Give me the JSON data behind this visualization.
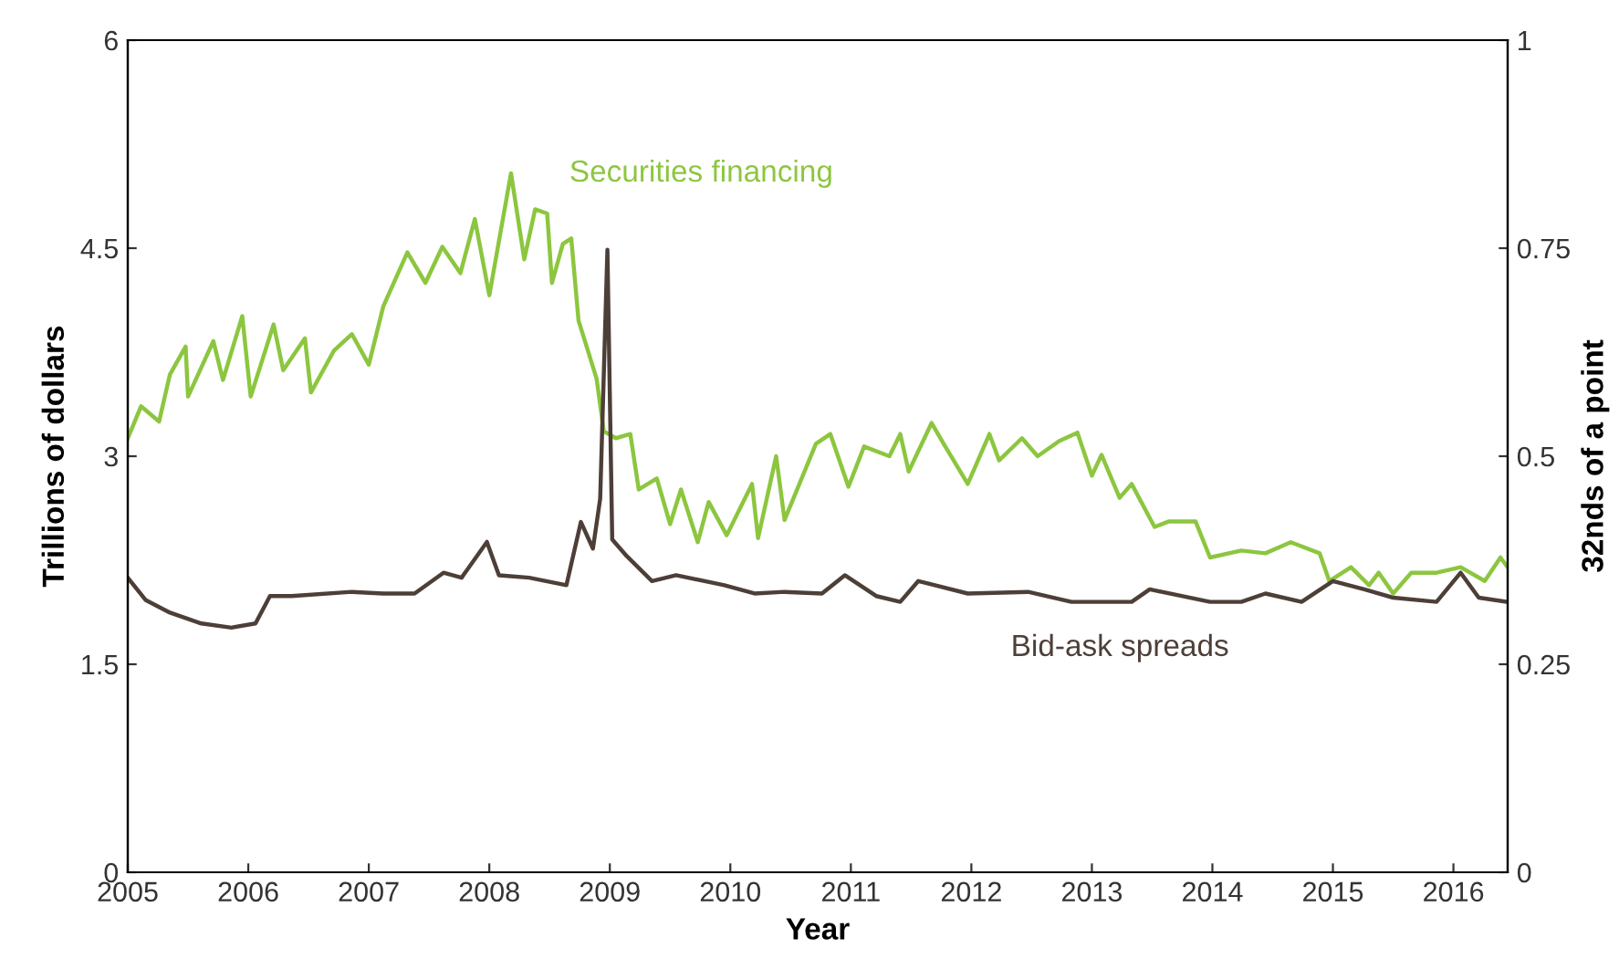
{
  "chart_data": {
    "type": "line",
    "xlabel": "Year",
    "ylabel": "Trillions of dollars",
    "y2label": "32nds of a point",
    "xlim": [
      2005,
      2016.45
    ],
    "xticks": [
      2005,
      2006,
      2007,
      2008,
      2009,
      2010,
      2011,
      2012,
      2013,
      2014,
      2015,
      2016
    ],
    "ylim": [
      0,
      6
    ],
    "yticks": [
      0,
      1.5,
      3,
      4.5,
      6
    ],
    "y2lim": [
      0,
      1
    ],
    "y2ticks": [
      0,
      0.25,
      0.5,
      0.75,
      1
    ],
    "grid": false,
    "legend": false,
    "series": [
      {
        "name": "Securities financing",
        "color": "#8cc63f",
        "x": [
          2005.0,
          2005.11,
          2005.26,
          2005.35,
          2005.48,
          2005.5,
          2005.71,
          2005.79,
          2005.95,
          2006.02,
          2006.21,
          2006.29,
          2006.47,
          2006.52,
          2006.71,
          2006.86,
          2007.0,
          2007.12,
          2007.32,
          2007.47,
          2007.61,
          2007.76,
          2007.88,
          2008.0,
          2008.18,
          2008.29,
          2008.38,
          2008.48,
          2008.52,
          2008.61,
          2008.68,
          2008.74,
          2008.89,
          2008.95,
          2009.05,
          2009.17,
          2009.24,
          2009.39,
          2009.5,
          2009.59,
          2009.73,
          2009.82,
          2009.97,
          2010.18,
          2010.23,
          2010.38,
          2010.45,
          2010.71,
          2010.83,
          2010.98,
          2011.11,
          2011.32,
          2011.41,
          2011.48,
          2011.67,
          2011.77,
          2011.97,
          2012.15,
          2012.23,
          2012.42,
          2012.55,
          2012.73,
          2012.88,
          2013.0,
          2013.08,
          2013.23,
          2013.33,
          2013.52,
          2013.64,
          2013.86,
          2013.98,
          2014.24,
          2014.44,
          2014.65,
          2014.89,
          2014.97,
          2015.15,
          2015.3,
          2015.38,
          2015.5,
          2015.65,
          2015.86,
          2016.06,
          2016.26,
          2016.39,
          2016.45
        ],
        "values": [
          3.13,
          3.36,
          3.25,
          3.59,
          3.79,
          3.43,
          3.83,
          3.55,
          4.01,
          3.43,
          3.95,
          3.62,
          3.85,
          3.46,
          3.76,
          3.88,
          3.66,
          4.08,
          4.47,
          4.25,
          4.51,
          4.32,
          4.71,
          4.16,
          5.04,
          4.42,
          4.78,
          4.75,
          4.25,
          4.53,
          4.57,
          3.98,
          3.56,
          3.18,
          3.13,
          3.16,
          2.76,
          2.84,
          2.51,
          2.76,
          2.38,
          2.67,
          2.43,
          2.8,
          2.41,
          3.0,
          2.54,
          3.09,
          3.16,
          2.78,
          3.07,
          3.0,
          3.16,
          2.89,
          3.24,
          3.09,
          2.8,
          3.16,
          2.97,
          3.13,
          3.0,
          3.11,
          3.17,
          2.86,
          3.01,
          2.7,
          2.8,
          2.49,
          2.53,
          2.53,
          2.27,
          2.32,
          2.3,
          2.38,
          2.3,
          2.1,
          2.2,
          2.07,
          2.16,
          2.01,
          2.16,
          2.16,
          2.2,
          2.1,
          2.27,
          2.2
        ]
      },
      {
        "name": "Bid-ask spreads",
        "color": "#4d3f38",
        "axis": "y2",
        "x": [
          2005.0,
          2005.15,
          2005.35,
          2005.61,
          2005.86,
          2006.06,
          2006.18,
          2006.36,
          2006.86,
          2007.12,
          2007.38,
          2007.62,
          2007.77,
          2007.98,
          2008.08,
          2008.33,
          2008.64,
          2008.76,
          2008.86,
          2008.92,
          2008.98,
          2009.02,
          2009.14,
          2009.35,
          2009.55,
          2009.95,
          2010.2,
          2010.45,
          2010.76,
          2010.95,
          2011.21,
          2011.41,
          2011.56,
          2011.97,
          2012.47,
          2012.83,
          2013.33,
          2013.48,
          2013.98,
          2014.24,
          2014.44,
          2014.74,
          2015.0,
          2015.26,
          2015.5,
          2015.86,
          2016.06,
          2016.21,
          2016.44
        ],
        "values": [
          0.354,
          0.327,
          0.312,
          0.299,
          0.294,
          0.299,
          0.332,
          0.332,
          0.337,
          0.335,
          0.335,
          0.36,
          0.354,
          0.397,
          0.357,
          0.354,
          0.345,
          0.421,
          0.389,
          0.449,
          0.748,
          0.4,
          0.38,
          0.35,
          0.357,
          0.345,
          0.335,
          0.337,
          0.335,
          0.357,
          0.332,
          0.325,
          0.35,
          0.335,
          0.337,
          0.325,
          0.325,
          0.34,
          0.325,
          0.325,
          0.335,
          0.325,
          0.35,
          0.34,
          0.33,
          0.325,
          0.36,
          0.33,
          0.325
        ]
      }
    ]
  }
}
